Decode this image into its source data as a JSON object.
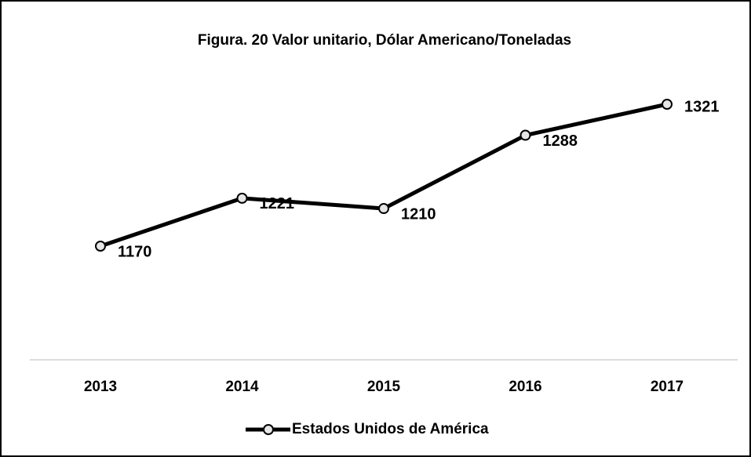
{
  "chart_data": {
    "type": "line",
    "title": "Figura. 20 Valor unitario, Dólar Americano/Toneladas",
    "categories": [
      "2013",
      "2014",
      "2015",
      "2016",
      "2017"
    ],
    "series": [
      {
        "name": "Estados Unidos de América",
        "color": "#000000",
        "values": [
          1170,
          1221,
          1210,
          1288,
          1321
        ]
      }
    ],
    "data_labels": true,
    "legend": "bottom"
  }
}
